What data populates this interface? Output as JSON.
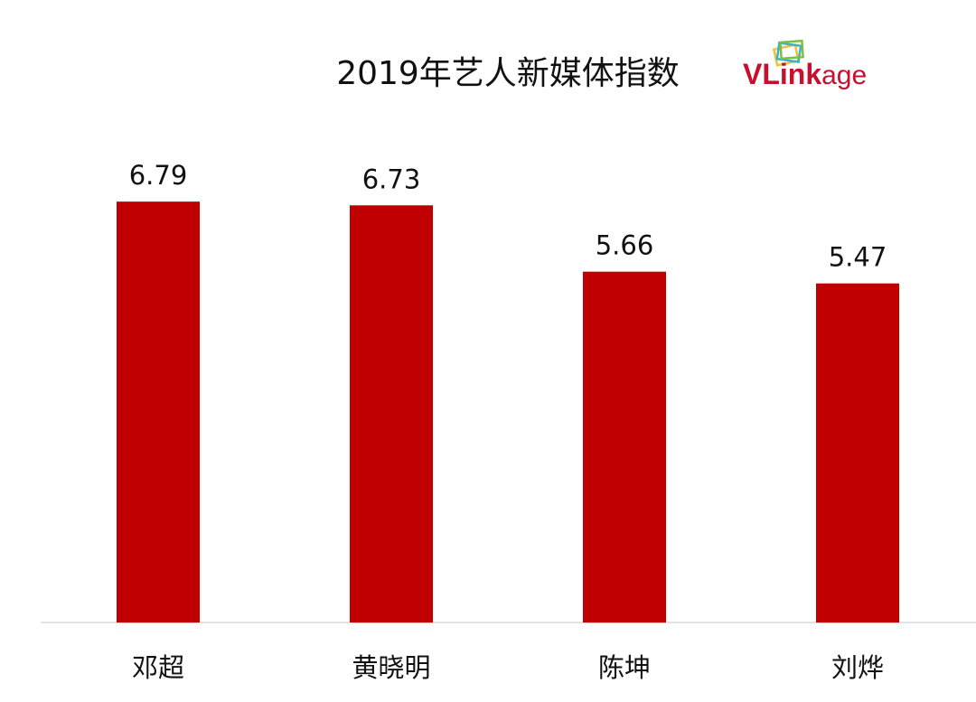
{
  "colors": {
    "bar": "#c00000",
    "axis": "#d9d9d9",
    "text": "#111111",
    "logo_red": "#c8102e",
    "logo_green": "#7ac143",
    "logo_yellow": "#f2c12e",
    "logo_teal": "#3bb3c3"
  },
  "logo": {
    "text_bold": "VLink",
    "text_light": "age",
    "icon": "stacked-frames-icon"
  },
  "chart_data": {
    "type": "bar",
    "title": "2019年艺人新媒体指数",
    "categories": [
      "邓超",
      "黄晓明",
      "陈坤",
      "刘烨"
    ],
    "values": [
      6.79,
      6.73,
      5.66,
      5.47
    ],
    "value_labels": [
      "6.79",
      "6.73",
      "5.66",
      "5.47"
    ],
    "xlabel": "",
    "ylabel": "",
    "ylim": [
      0,
      7.9
    ],
    "grid": false,
    "legend": "none"
  }
}
